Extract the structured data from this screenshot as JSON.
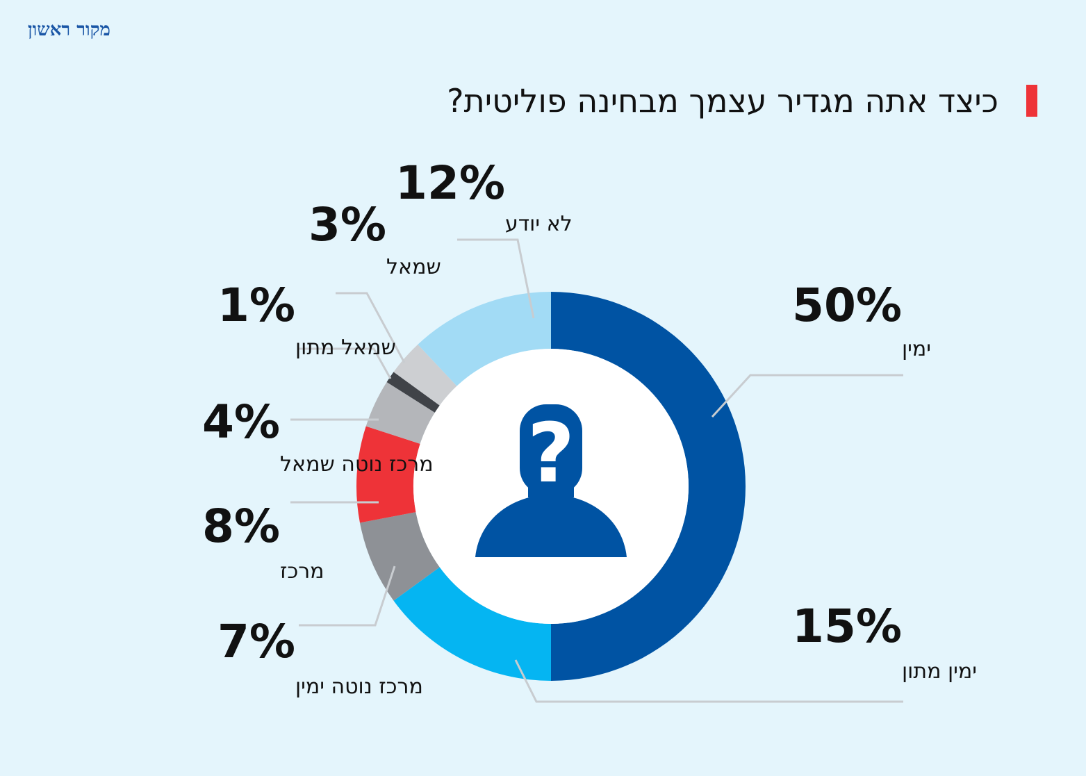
{
  "brand": {
    "logo_text": "מקור ראשון",
    "color": "#1a56a6"
  },
  "title": "כיצד אתה מגדיר עצמך מבחינה פוליטית?",
  "colors": {
    "background": "#e4f5fc",
    "accent": "#ee3338",
    "icon": "#0053a3"
  },
  "center_icon": "person-question-icon",
  "chart_data": {
    "type": "pie",
    "variant": "donut",
    "title": "כיצד אתה מגדיר עצמך מבחינה פוליטית?",
    "unit": "%",
    "slices": [
      {
        "label": "ימין",
        "value": 50,
        "display": "50%",
        "color": "#0053a3"
      },
      {
        "label": "ימין מתון",
        "value": 15,
        "display": "15%",
        "color": "#05b5f2"
      },
      {
        "label": "מרכז נוטה ימין",
        "value": 7,
        "display": "7%",
        "color": "#8e9196"
      },
      {
        "label": "מרכז",
        "value": 8,
        "display": "8%",
        "color": "#ee3338"
      },
      {
        "label": "מרכז נוטה שמאל",
        "value": 4,
        "display": "4%",
        "color": "#b4b6ba"
      },
      {
        "label": "שמאל מתון",
        "value": 1,
        "display": "1%",
        "color": "#404348"
      },
      {
        "label": "שמאל",
        "value": 3,
        "display": "3%",
        "color": "#cdcfd2"
      },
      {
        "label": "לא יודע",
        "value": 12,
        "display": "12%",
        "color": "#a2dbf5"
      }
    ]
  }
}
